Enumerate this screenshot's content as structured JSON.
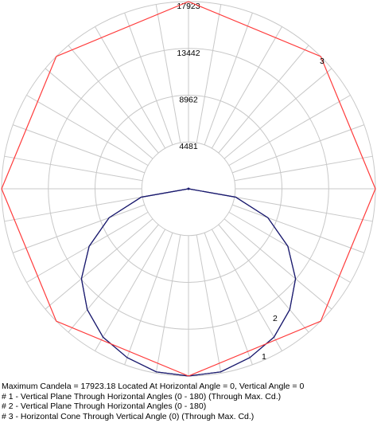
{
  "chart_data": {
    "type": "polar",
    "radial_max": 17923,
    "radial_ticks": [
      4481,
      8962,
      13442,
      17923
    ],
    "angle_step_deg": 10,
    "grid": true,
    "colors": {
      "grid": "#c8c8c8",
      "series_1": "#1a1a6e",
      "series_3": "#ff3b3b"
    },
    "series": [
      {
        "name": "1",
        "label_text": "1",
        "unit": "cd",
        "angles_deg": [
          0,
          10,
          20,
          30,
          40,
          50,
          60,
          70,
          80,
          90
        ],
        "values": [
          17923,
          17800,
          17200,
          16400,
          15100,
          13400,
          11000,
          8100,
          4600,
          0
        ]
      },
      {
        "name": "2",
        "label_text": "2",
        "unit": "cd",
        "angles_deg": [
          0,
          10,
          20,
          30,
          40,
          50,
          60,
          70,
          80,
          90
        ],
        "values": [
          17923,
          17800,
          17200,
          16400,
          15100,
          13400,
          11000,
          8100,
          4600,
          0
        ]
      },
      {
        "name": "3",
        "label_text": "3",
        "unit": "cd",
        "angles_deg": [
          0,
          45,
          90,
          135,
          180,
          225,
          270,
          315
        ],
        "values": [
          17923,
          17923,
          17923,
          17923,
          17923,
          17923,
          17923,
          17923
        ]
      }
    ]
  },
  "legend": {
    "max_line": "Maximum Candela = 17923.18   Located At Horizontal Angle = 0, Vertical Angle = 0",
    "line_1": "# 1 - Vertical Plane Through Horizontal Angles (0 - 180) (Through Max. Cd.)",
    "line_2": "# 2 - Vertical Plane Through Horizontal Angles (0 - 180)",
    "line_3": "# 3 - Horizontal Cone Through Vertical Angle (0) (Through Max. Cd.)"
  }
}
